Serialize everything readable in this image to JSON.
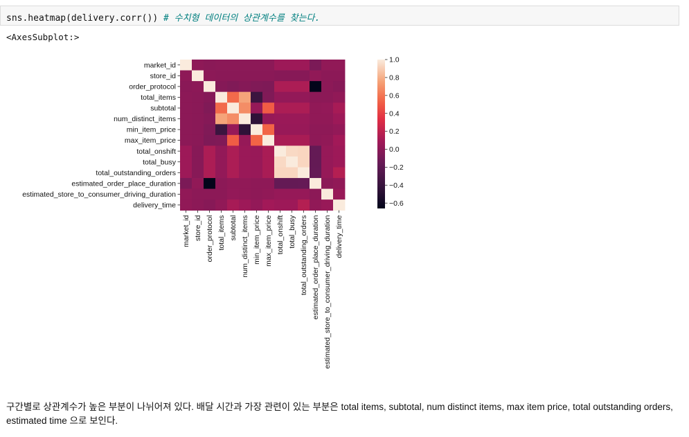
{
  "code_cell": {
    "code": "sns.heatmap(delivery.corr())",
    "comment": "# 수치형 데이터의 상관계수를 찾는다."
  },
  "output": {
    "repr": "<AxesSubplot:>"
  },
  "chart_data": {
    "type": "heatmap",
    "title": "",
    "xlabel": "",
    "ylabel": "",
    "labels": [
      "market_id",
      "store_id",
      "order_protocol",
      "total_items",
      "subtotal",
      "num_distinct_items",
      "min_item_price",
      "max_item_price",
      "total_onshift",
      "total_busy",
      "total_outstanding_orders",
      "estimated_order_place_duration",
      "estimated_store_to_consumer_driving_duration",
      "delivery_time"
    ],
    "matrix": [
      [
        1.0,
        0.01,
        -0.01,
        0.0,
        0.0,
        0.0,
        0.0,
        0.0,
        0.07,
        0.07,
        0.07,
        -0.07,
        0.02,
        0.02
      ],
      [
        0.01,
        1.0,
        0.0,
        -0.01,
        -0.01,
        -0.01,
        -0.01,
        -0.01,
        -0.02,
        -0.02,
        -0.02,
        0.02,
        0.0,
        0.0
      ],
      [
        -0.01,
        0.0,
        1.0,
        -0.03,
        -0.05,
        -0.03,
        -0.05,
        -0.06,
        0.13,
        0.13,
        0.13,
        -0.66,
        0.0,
        -0.02
      ],
      [
        0.0,
        -0.01,
        -0.03,
        1.0,
        0.56,
        0.76,
        -0.39,
        -0.05,
        0.03,
        0.03,
        0.03,
        0.0,
        0.0,
        0.02
      ],
      [
        0.0,
        -0.01,
        -0.05,
        0.56,
        1.0,
        0.68,
        0.04,
        0.51,
        0.13,
        0.13,
        0.13,
        0.02,
        0.03,
        0.11
      ],
      [
        0.0,
        -0.01,
        -0.03,
        0.76,
        0.68,
        1.0,
        -0.45,
        0.04,
        0.06,
        0.06,
        0.06,
        0.02,
        0.02,
        0.07
      ],
      [
        0.0,
        -0.01,
        -0.05,
        -0.39,
        0.04,
        -0.45,
        1.0,
        0.54,
        0.05,
        0.05,
        0.05,
        0.01,
        0.01,
        0.03
      ],
      [
        0.0,
        -0.01,
        -0.06,
        -0.05,
        0.51,
        0.04,
        0.54,
        1.0,
        0.12,
        0.12,
        0.12,
        0.01,
        0.02,
        0.09
      ],
      [
        0.07,
        -0.02,
        0.13,
        0.03,
        0.13,
        0.06,
        0.05,
        0.12,
        1.0,
        0.94,
        0.93,
        -0.17,
        0.04,
        0.07
      ],
      [
        0.07,
        -0.02,
        0.13,
        0.03,
        0.13,
        0.06,
        0.05,
        0.12,
        0.94,
        1.0,
        0.93,
        -0.17,
        0.04,
        0.07
      ],
      [
        0.07,
        -0.02,
        0.13,
        0.03,
        0.13,
        0.06,
        0.05,
        0.12,
        0.93,
        0.93,
        1.0,
        -0.16,
        0.04,
        0.16
      ],
      [
        -0.07,
        0.02,
        -0.66,
        0.0,
        0.02,
        0.02,
        0.01,
        0.01,
        -0.17,
        -0.17,
        -0.16,
        1.0,
        0.0,
        0.02
      ],
      [
        0.02,
        0.0,
        0.0,
        0.0,
        0.03,
        0.02,
        0.01,
        0.02,
        0.04,
        0.04,
        0.04,
        0.0,
        1.0,
        0.05
      ],
      [
        0.02,
        0.0,
        -0.02,
        0.02,
        0.11,
        0.07,
        0.03,
        0.09,
        0.07,
        0.07,
        0.16,
        0.02,
        0.05,
        1.0
      ]
    ],
    "vmin": -0.66,
    "vmax": 1.0,
    "colormap": "rocket",
    "colorbar": {
      "ticks": [
        -0.6,
        -0.4,
        -0.2,
        0.0,
        0.2,
        0.4,
        0.6,
        0.8,
        1.0
      ],
      "tick_labels": [
        "−0.6",
        "−0.4",
        "−0.2",
        "0.0",
        "0.2",
        "0.4",
        "0.6",
        "0.8",
        "1.0"
      ]
    },
    "grid": false
  },
  "markdown": {
    "text": "구간별로 상관계수가 높은 부분이 나뉘어져 있다. 배달 시간과 가장 관련이 있는 부분은 total items, subtotal, num distinct items, max item price, total outstanding orders, estimated time 으로 보인다."
  }
}
